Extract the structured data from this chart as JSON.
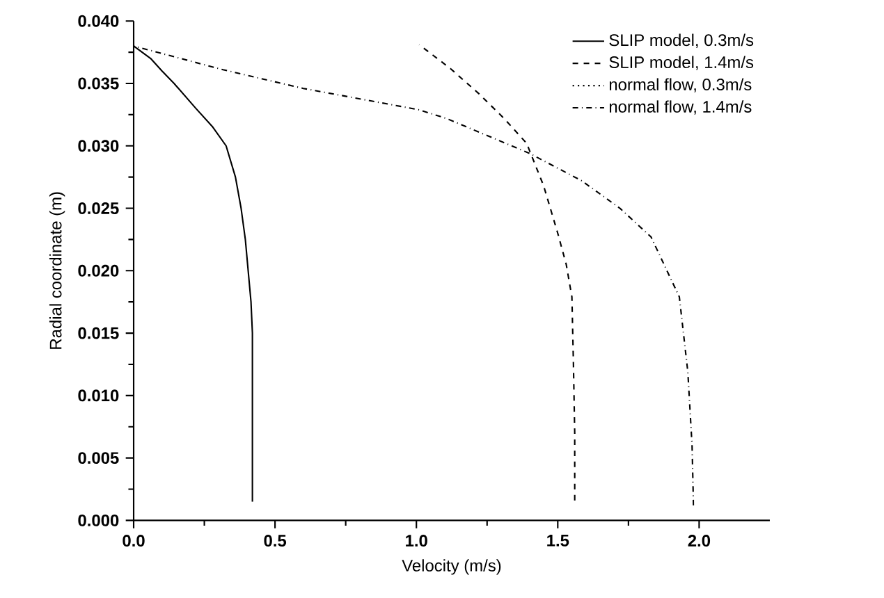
{
  "chart_data": {
    "type": "line",
    "xlabel": "Velocity (m/s)",
    "ylabel": "Radial coordinate (m)",
    "xlim": [
      0,
      2.25
    ],
    "ylim": [
      0,
      0.04
    ],
    "xticks": [
      {
        "value": 0,
        "label": "0.0"
      },
      {
        "value": 0.5,
        "label": "0.5"
      },
      {
        "value": 1,
        "label": "1.0"
      },
      {
        "value": 1.5,
        "label": "1.5"
      },
      {
        "value": 2,
        "label": "2.0"
      }
    ],
    "yticks": [
      {
        "value": 0,
        "label": "0.000"
      },
      {
        "value": 0.005,
        "label": "0.005"
      },
      {
        "value": 0.01,
        "label": "0.010"
      },
      {
        "value": 0.015,
        "label": "0.015"
      },
      {
        "value": 0.02,
        "label": "0.020"
      },
      {
        "value": 0.025,
        "label": "0.025"
      },
      {
        "value": 0.03,
        "label": "0.030"
      },
      {
        "value": 0.035,
        "label": "0.035"
      },
      {
        "value": 0.04,
        "label": "0.040"
      }
    ],
    "grid": false,
    "legend": "top right",
    "marker": "none",
    "series": [
      {
        "name": "SLIP model, 0.3m/s",
        "color": "#000000",
        "line_style": "solid",
        "x": [
          0,
          0.03,
          0.06,
          0.1,
          0.143,
          0.22,
          0.28,
          0.327,
          0.36,
          0.38,
          0.395,
          0.405,
          0.415,
          0.42,
          0.42
        ],
        "values": [
          0.038,
          0.0375,
          0.037,
          0.036,
          0.035,
          0.033,
          0.0315,
          0.03,
          0.0275,
          0.025,
          0.0225,
          0.02,
          0.0175,
          0.015,
          0.0015
        ]
      },
      {
        "name": "SLIP model, 1.4m/s",
        "color": "#000000",
        "line_style": "dashed",
        "x": [
          1.01,
          1.12,
          1.22,
          1.31,
          1.39,
          1.45,
          1.5,
          1.53,
          1.55,
          1.555,
          1.56,
          1.56
        ],
        "values": [
          0.0381,
          0.0362,
          0.0342,
          0.0322,
          0.0302,
          0.0268,
          0.023,
          0.0205,
          0.0179,
          0.013,
          0.007,
          0.0016
        ]
      },
      {
        "name": "normal flow, 0.3m/s",
        "color": "#000000",
        "line_style": "dotted",
        "values": [
          null
        ]
      },
      {
        "name": "normal flow, 1.4m/s",
        "color": "#000000",
        "line_style": "dashdot",
        "x": [
          0,
          0.316,
          0.6,
          1.007,
          1.106,
          1.4,
          1.585,
          1.72,
          1.83,
          1.93,
          1.96,
          1.975,
          1.98
        ],
        "values": [
          0.038,
          0.0361,
          0.0346,
          0.0329,
          0.0322,
          0.0294,
          0.0272,
          0.025,
          0.0227,
          0.0179,
          0.0119,
          0.006,
          0.0012
        ]
      }
    ]
  }
}
